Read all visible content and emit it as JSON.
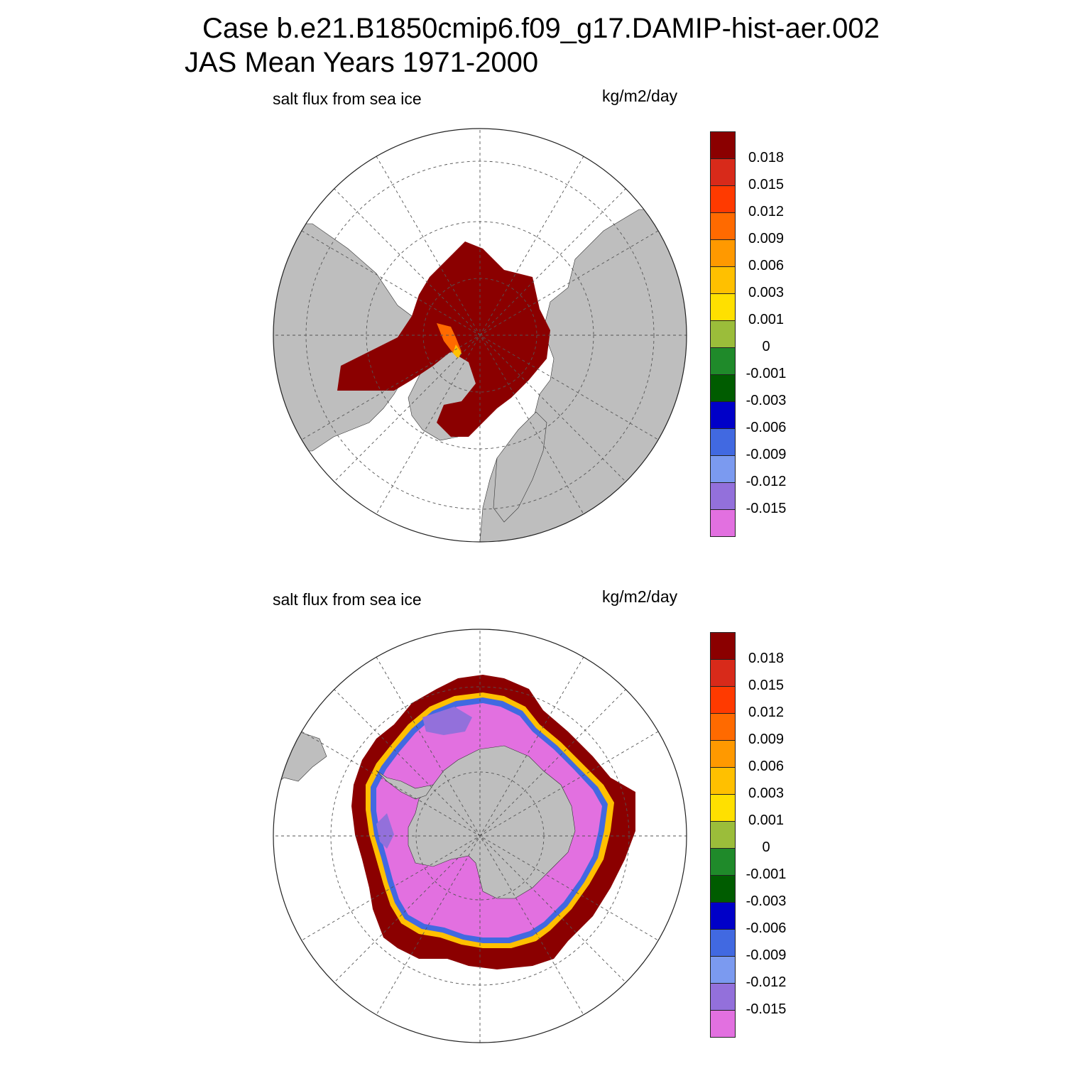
{
  "header": {
    "line1": "Case b.e21.B1850cmip6.f09_g17.DAMIP-hist-aer.002",
    "line2": "JAS Mean   Years 1971-2000"
  },
  "colors": {
    "land": "#bebebe",
    "ocean": "#ffffff",
    "grid": "#555555"
  },
  "chart_data": [
    {
      "type": "heatmap",
      "projection": "polar-stereographic",
      "hemisphere": "north",
      "title": "salt flux from sea ice",
      "units": "kg/m2/day",
      "levels": [
        "0.018",
        "0.015",
        "0.012",
        "0.009",
        "0.006",
        "0.003",
        "0.001",
        "0",
        "-0.001",
        "-0.003",
        "-0.006",
        "-0.009",
        "-0.012",
        "-0.015"
      ],
      "colorbar": [
        "#8b0000",
        "#d82a1a",
        "#ff3a00",
        "#ff6a00",
        "#ff9900",
        "#ffc000",
        "#ffe000",
        "#9bbd3a",
        "#1f8a2a",
        "#005c00",
        "#0000c8",
        "#4169e1",
        "#7b9af0",
        "#9370db",
        "#e270e0"
      ],
      "dominant_value_class": ">0.018"
    },
    {
      "type": "heatmap",
      "projection": "polar-stereographic",
      "hemisphere": "south",
      "title": "salt flux from sea ice",
      "units": "kg/m2/day",
      "levels": [
        "0.018",
        "0.015",
        "0.012",
        "0.009",
        "0.006",
        "0.003",
        "0.001",
        "0",
        "-0.001",
        "-0.003",
        "-0.006",
        "-0.009",
        "-0.012",
        "-0.015"
      ],
      "colorbar": [
        "#8b0000",
        "#d82a1a",
        "#ff3a00",
        "#ff6a00",
        "#ff9900",
        "#ffc000",
        "#ffe000",
        "#9bbd3a",
        "#1f8a2a",
        "#005c00",
        "#0000c8",
        "#4169e1",
        "#7b9af0",
        "#9370db",
        "#e270e0"
      ],
      "dominant_value_class": "<-0.015 interior, >0.018 ice edge"
    }
  ]
}
